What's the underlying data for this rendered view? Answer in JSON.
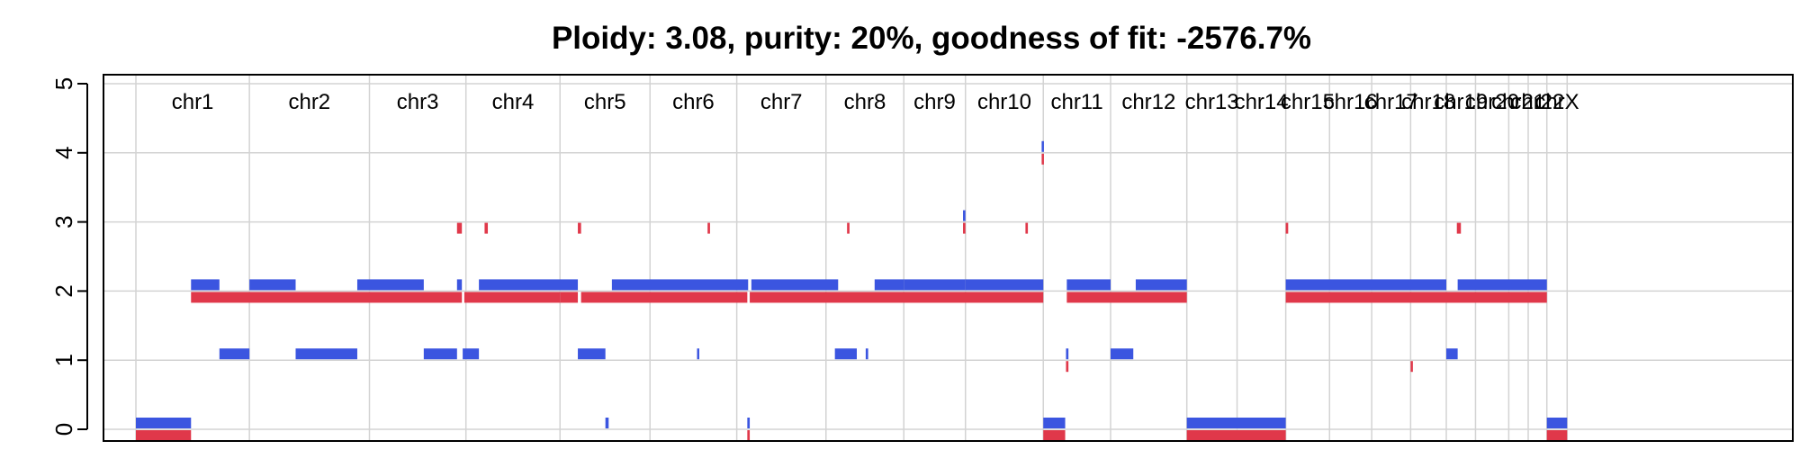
{
  "chart_data": {
    "type": "segment",
    "title": "Ploidy: 3.08, purity: 20%, goodness of fit: -2576.7%",
    "xlabel": "",
    "ylabel": "",
    "ylim": [
      0,
      5
    ],
    "y_ticks": [
      "0",
      "1",
      "2",
      "3",
      "4",
      "5"
    ],
    "grid": true,
    "colors": {
      "major": "#3b55e0",
      "minor": "#e0384a",
      "grid": "#d3d3d3",
      "axis": "#000000"
    },
    "genome_range": [
      0,
      200
    ],
    "chromosomes": [
      {
        "name": "chr1",
        "start": 0,
        "end": 14.0
      },
      {
        "name": "chr2",
        "start": 14.0,
        "end": 28.8
      },
      {
        "name": "chr3",
        "start": 28.8,
        "end": 40.7
      },
      {
        "name": "chr4",
        "start": 40.7,
        "end": 52.3
      },
      {
        "name": "chr5",
        "start": 52.3,
        "end": 63.4
      },
      {
        "name": "chr6",
        "start": 63.4,
        "end": 74.1
      },
      {
        "name": "chr7",
        "start": 74.1,
        "end": 85.1
      },
      {
        "name": "chr8",
        "start": 85.1,
        "end": 94.7
      },
      {
        "name": "chr9",
        "start": 94.7,
        "end": 102.3
      },
      {
        "name": "chr10",
        "start": 102.3,
        "end": 111.9
      },
      {
        "name": "chr11",
        "start": 111.9,
        "end": 120.2
      },
      {
        "name": "chr12",
        "start": 120.2,
        "end": 129.6
      },
      {
        "name": "chr13",
        "start": 129.6,
        "end": 135.8
      },
      {
        "name": "chr14",
        "start": 135.8,
        "end": 141.8
      },
      {
        "name": "chr15",
        "start": 141.8,
        "end": 147.2
      },
      {
        "name": "chr16",
        "start": 147.2,
        "end": 152.4
      },
      {
        "name": "chr17",
        "start": 152.4,
        "end": 157.2
      },
      {
        "name": "chr18",
        "start": 157.2,
        "end": 161.6
      },
      {
        "name": "chr19",
        "start": 161.6,
        "end": 165.2
      },
      {
        "name": "chr20",
        "start": 165.2,
        "end": 169.3
      },
      {
        "name": "chr21",
        "start": 169.3,
        "end": 171.7
      },
      {
        "name": "chr22",
        "start": 171.7,
        "end": 174.0
      },
      {
        "name": "chrX",
        "start": 174.0,
        "end": 176.5
      }
    ],
    "series": [
      {
        "name": "",
        "role": "major",
        "segments": [
          [
            0,
            6.8,
            0
          ],
          [
            6.8,
            10.3,
            2
          ],
          [
            10.3,
            14.0,
            1
          ],
          [
            14.0,
            19.7,
            2
          ],
          [
            19.7,
            27.3,
            1
          ],
          [
            27.3,
            35.5,
            2
          ],
          [
            35.5,
            39.6,
            1
          ],
          [
            39.6,
            40.2,
            2
          ],
          [
            40.3,
            42.3,
            1
          ],
          [
            42.3,
            54.5,
            2
          ],
          [
            54.5,
            57.9,
            1
          ],
          [
            57.9,
            58.3,
            0
          ],
          [
            58.7,
            75.5,
            2
          ],
          [
            69.2,
            69.4,
            1
          ],
          [
            75.4,
            75.7,
            0
          ],
          [
            75.9,
            86.6,
            2
          ],
          [
            86.2,
            88.9,
            1
          ],
          [
            90.0,
            90.3,
            1
          ],
          [
            91.1,
            94.7,
            2
          ],
          [
            94.7,
            102.3,
            2
          ],
          [
            102.0,
            102.3,
            3
          ],
          [
            102.3,
            111.9,
            2
          ],
          [
            111.9,
            114.6,
            0
          ],
          [
            114.7,
            115.0,
            1
          ],
          [
            114.8,
            120.2,
            2
          ],
          [
            120.2,
            123.0,
            1
          ],
          [
            123.3,
            129.6,
            2
          ],
          [
            129.6,
            141.8,
            0
          ],
          [
            141.8,
            161.6,
            2
          ],
          [
            161.6,
            163.0,
            1
          ],
          [
            163.0,
            174.0,
            2
          ],
          [
            174.0,
            176.5,
            0
          ],
          [
            111.7,
            111.8,
            4
          ]
        ]
      },
      {
        "name": "",
        "role": "minor",
        "segments": [
          [
            0,
            6.8,
            0
          ],
          [
            6.8,
            40.2,
            2
          ],
          [
            39.6,
            40.2,
            3
          ],
          [
            40.5,
            52.3,
            2
          ],
          [
            43.0,
            43.4,
            3
          ],
          [
            52.3,
            54.5,
            2
          ],
          [
            54.5,
            54.9,
            3
          ],
          [
            54.9,
            75.4,
            2
          ],
          [
            70.5,
            70.8,
            3
          ],
          [
            75.4,
            75.7,
            0
          ],
          [
            75.7,
            111.9,
            2
          ],
          [
            87.7,
            88.0,
            3
          ],
          [
            102.0,
            102.3,
            3
          ],
          [
            109.7,
            110.0,
            3
          ],
          [
            111.9,
            114.6,
            0
          ],
          [
            114.7,
            115.0,
            1
          ],
          [
            114.8,
            120.2,
            2
          ],
          [
            120.2,
            129.6,
            2
          ],
          [
            129.6,
            141.8,
            0
          ],
          [
            141.8,
            174.0,
            2
          ],
          [
            141.8,
            142.1,
            3
          ],
          [
            157.2,
            157.4,
            1
          ],
          [
            162.9,
            163.4,
            3
          ],
          [
            174.0,
            176.5,
            0
          ],
          [
            111.7,
            111.8,
            4
          ]
        ]
      }
    ]
  }
}
